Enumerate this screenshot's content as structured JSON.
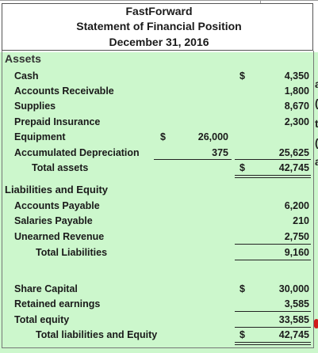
{
  "header": {
    "company": "FastForward",
    "statement": "Statement of Financial Position",
    "date": "December 31, 2016"
  },
  "assets": {
    "heading": "Assets",
    "cash_label": "Cash",
    "cash_currency": "$",
    "cash_value": "4,350",
    "ar_label": "Accounts Receivable",
    "ar_value": "1,800",
    "supplies_label": "Supplies",
    "supplies_value": "8,670",
    "prepaid_label": "Prepaid Insurance",
    "prepaid_value": "2,300",
    "equipment_label": "Equipment",
    "equipment_currency": "$",
    "equipment_value": "26,000",
    "accdep_label": "Accumulated Depreciation",
    "accdep_value": "375",
    "net_equipment_value": "25,625",
    "total_label": "Total assets",
    "total_currency": "$",
    "total_value": "42,745"
  },
  "liabilities": {
    "heading": "Liabilities and Equity",
    "ap_label": "Accounts Payable",
    "ap_value": "6,200",
    "salaries_label": "Salaries Payable",
    "salaries_value": "210",
    "unearned_label": "Unearned Revenue",
    "unearned_value": "2,750",
    "total_label": "Total Liabilities",
    "total_value": "9,160"
  },
  "equity": {
    "share_label": "Share Capital",
    "share_currency": "$",
    "share_value": "30,000",
    "retained_label": "Retained earnings",
    "retained_value": "3,585",
    "total_label": "Total equity",
    "total_value": "33,585",
    "total_le_label": "Total liabilities and Equity",
    "total_le_currency": "$",
    "total_le_value": "42,745"
  },
  "edge_fragments": [
    "a",
    "(",
    "t",
    "(",
    "a"
  ],
  "colors": {
    "body_background": "#ccf7cc",
    "header_background": "#ffffff",
    "fragment_marker": "#d11a1a"
  }
}
